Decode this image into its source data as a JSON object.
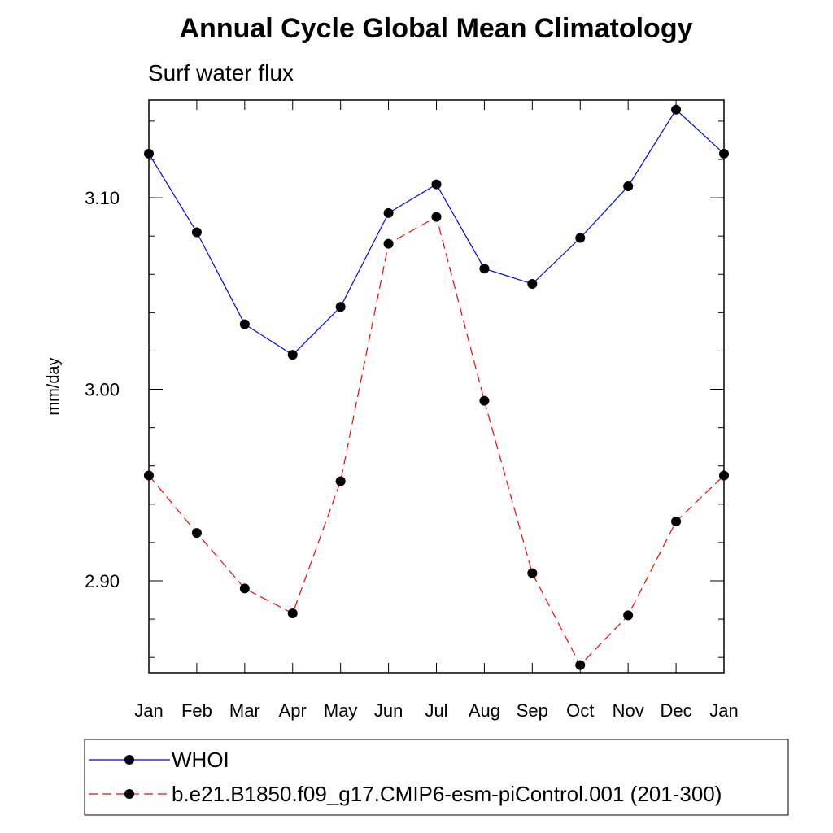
{
  "chart_data": {
    "type": "line",
    "title": "Annual Cycle Global Mean Climatology",
    "subtitle": "Surf water flux",
    "ylabel": "mm/day",
    "xlabel": "",
    "categories": [
      "Jan",
      "Feb",
      "Mar",
      "Apr",
      "May",
      "Jun",
      "Jul",
      "Aug",
      "Sep",
      "Oct",
      "Nov",
      "Dec",
      "Jan"
    ],
    "ylim": [
      2.852,
      3.151
    ],
    "yticks": [
      2.9,
      3.0,
      3.1
    ],
    "ytick_labels": [
      "2.90",
      "3.00",
      "3.10"
    ],
    "grid": false,
    "legend_position": "bottom",
    "series": [
      {
        "name": "WHOI",
        "color": "#0000ff",
        "dash": "solid",
        "values": [
          3.123,
          3.082,
          3.034,
          3.018,
          3.043,
          3.092,
          3.107,
          3.063,
          3.055,
          3.079,
          3.106,
          3.146,
          3.123
        ]
      },
      {
        "name": "b.e21.B1850.f09_g17.CMIP6-esm-piControl.001 (201-300)",
        "color": "#ff0000",
        "dash": "dashed",
        "values": [
          2.955,
          2.925,
          2.896,
          2.883,
          2.952,
          3.076,
          3.09,
          2.994,
          2.904,
          2.856,
          2.882,
          2.931,
          2.955
        ]
      }
    ]
  }
}
